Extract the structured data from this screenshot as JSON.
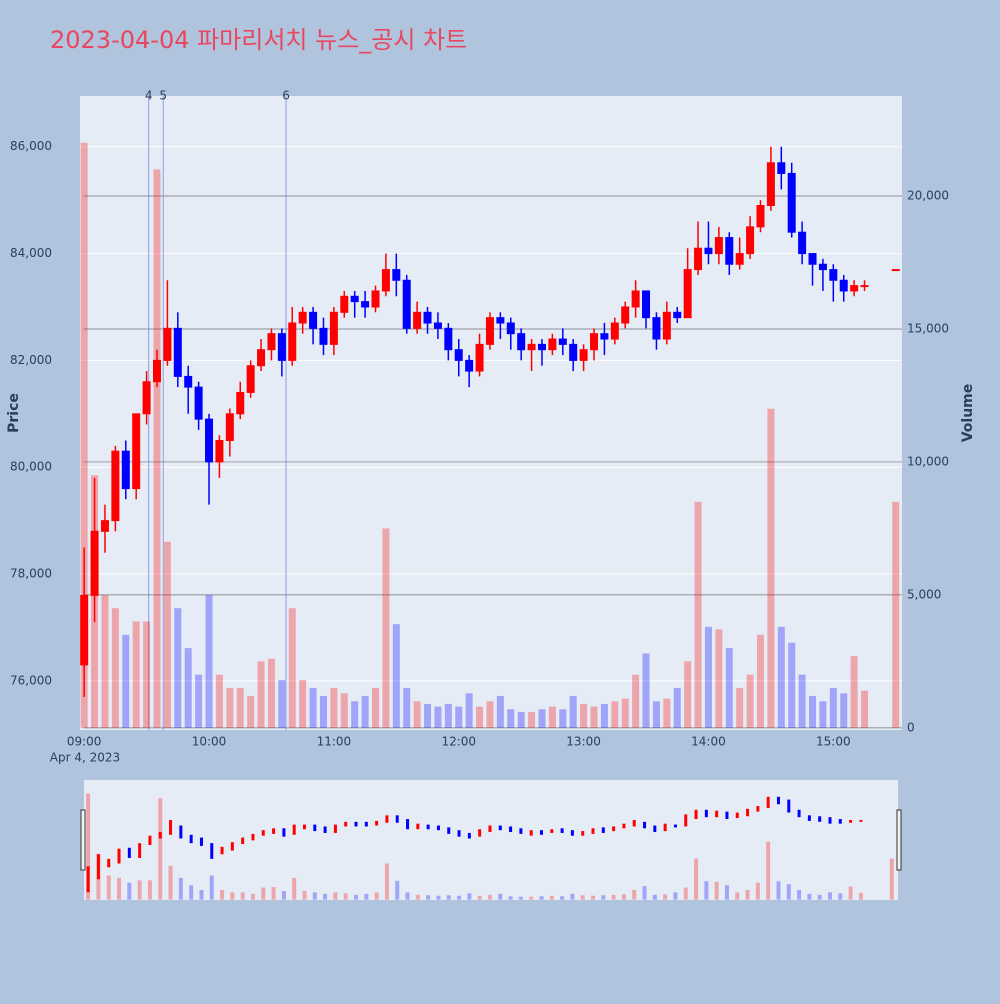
{
  "chart_data": {
    "type": "candlestick",
    "title": "2023-04-04 파마리서치 뉴스_공시 차트",
    "ylabel": "Price",
    "y2label": "Volume",
    "date_label": "Apr 4, 2023",
    "up_color": "#ff0000",
    "down_color": "#0000ff",
    "xlim": [
      "08:58",
      "15:33"
    ],
    "xticks": [
      "09:00",
      "10:00",
      "11:00",
      "12:00",
      "13:00",
      "14:00",
      "15:00"
    ],
    "ylim": [
      75080,
      86950
    ],
    "yticks": [
      {
        "value": 76000,
        "label": "76,000"
      },
      {
        "value": 78000,
        "label": "78,000"
      },
      {
        "value": 80000,
        "label": "80,000"
      },
      {
        "value": 82000,
        "label": "82,000"
      },
      {
        "value": 84000,
        "label": "84,000"
      },
      {
        "value": 86000,
        "label": "86,000"
      }
    ],
    "y2lim": [
      -80,
      23760
    ],
    "y2ticks": [
      0,
      {
        "value": 5000,
        "label": "5,000"
      },
      {
        "value": 10000,
        "label": "10,000"
      },
      {
        "value": 15000,
        "label": "15,000"
      },
      {
        "value": 20000,
        "label": "20,000"
      }
    ],
    "events": [
      {
        "x": "09:31",
        "label": "4"
      },
      {
        "x": "09:38",
        "label": "5"
      },
      {
        "x": "10:37",
        "label": "6"
      }
    ],
    "x": [
      "09:00",
      "09:05",
      "09:10",
      "09:15",
      "09:20",
      "09:25",
      "09:30",
      "09:35",
      "09:40",
      "09:45",
      "09:50",
      "09:55",
      "10:00",
      "10:05",
      "10:10",
      "10:15",
      "10:20",
      "10:25",
      "10:30",
      "10:35",
      "10:40",
      "10:45",
      "10:50",
      "10:55",
      "11:00",
      "11:05",
      "11:10",
      "11:15",
      "11:20",
      "11:25",
      "11:30",
      "11:35",
      "11:40",
      "11:45",
      "11:50",
      "11:55",
      "12:00",
      "12:05",
      "12:10",
      "12:15",
      "12:20",
      "12:25",
      "12:30",
      "12:35",
      "12:40",
      "12:45",
      "12:50",
      "12:55",
      "13:00",
      "13:05",
      "13:10",
      "13:15",
      "13:20",
      "13:25",
      "13:30",
      "13:35",
      "13:40",
      "13:45",
      "13:50",
      "13:55",
      "14:00",
      "14:05",
      "14:10",
      "14:15",
      "14:20",
      "14:25",
      "14:30",
      "14:35",
      "14:40",
      "14:45",
      "14:50",
      "14:55",
      "15:00",
      "15:05",
      "15:10",
      "15:15",
      "15:30"
    ],
    "open": [
      76300,
      77600,
      78800,
      79000,
      80300,
      79600,
      81000,
      81600,
      82000,
      82600,
      81700,
      81500,
      80900,
      80100,
      80500,
      81000,
      81400,
      81900,
      82200,
      82500,
      82000,
      82700,
      82900,
      82600,
      82300,
      82900,
      83200,
      83100,
      83000,
      83300,
      83700,
      83500,
      82600,
      82900,
      82700,
      82600,
      82200,
      82000,
      81800,
      82300,
      82800,
      82700,
      82500,
      82200,
      82300,
      82200,
      82400,
      82300,
      82000,
      82200,
      82500,
      82400,
      82700,
      83000,
      83300,
      82800,
      82400,
      82900,
      82800,
      83700,
      84100,
      84000,
      84300,
      83800,
      84000,
      84500,
      84900,
      85700,
      85500,
      84400,
      84000,
      83800,
      83700,
      83500,
      83300,
      83400,
      83700
    ],
    "high": [
      78500,
      79800,
      79300,
      80400,
      80500,
      81000,
      81800,
      82200,
      83500,
      82900,
      81900,
      81600,
      81000,
      80600,
      81100,
      81600,
      82000,
      82400,
      82600,
      82600,
      83000,
      83000,
      83000,
      82800,
      83000,
      83300,
      83300,
      83300,
      83400,
      84000,
      84000,
      83600,
      83100,
      83000,
      82900,
      82700,
      82400,
      82100,
      82500,
      82900,
      82900,
      82800,
      82600,
      82400,
      82400,
      82500,
      82600,
      82400,
      82300,
      82600,
      82700,
      82800,
      83100,
      83500,
      83300,
      82900,
      83100,
      83000,
      84100,
      84600,
      84600,
      84500,
      84400,
      84300,
      84700,
      85000,
      86000,
      86000,
      85700,
      84600,
      84000,
      83900,
      83800,
      83600,
      83500,
      83500,
      83700
    ],
    "low": [
      75700,
      77100,
      78400,
      78800,
      79400,
      79400,
      80800,
      81500,
      81900,
      81500,
      81000,
      80700,
      79300,
      79800,
      80200,
      80900,
      81300,
      81800,
      82000,
      81700,
      81900,
      82500,
      82300,
      82100,
      82100,
      82800,
      82800,
      82800,
      82900,
      83200,
      83200,
      82500,
      82500,
      82500,
      82400,
      82000,
      81700,
      81500,
      81700,
      82200,
      82400,
      82200,
      82000,
      81800,
      81900,
      82100,
      82100,
      81800,
      81800,
      82000,
      82100,
      82300,
      82600,
      82800,
      82600,
      82200,
      82300,
      82700,
      82800,
      83600,
      83800,
      83800,
      83600,
      83700,
      83900,
      84400,
      84800,
      85200,
      84300,
      83800,
      83400,
      83300,
      83100,
      83100,
      83200,
      83300,
      83700
    ],
    "close": [
      77600,
      78800,
      79000,
      80300,
      79600,
      81000,
      81600,
      82000,
      82600,
      81700,
      81500,
      80900,
      80100,
      80500,
      81000,
      81400,
      81900,
      82200,
      82500,
      82000,
      82700,
      82900,
      82600,
      82300,
      82900,
      83200,
      83100,
      83000,
      83300,
      83700,
      83500,
      82600,
      82900,
      82700,
      82600,
      82200,
      82000,
      81800,
      82300,
      82800,
      82700,
      82500,
      82200,
      82300,
      82200,
      82400,
      82300,
      82000,
      82200,
      82500,
      82400,
      82700,
      83000,
      83300,
      82800,
      82400,
      82900,
      82800,
      83700,
      84100,
      84000,
      84300,
      83800,
      84000,
      84500,
      84900,
      85700,
      85500,
      84400,
      84000,
      83800,
      83700,
      83500,
      83300,
      83400,
      83400,
      83700
    ],
    "volume": [
      22000,
      9500,
      5000,
      4500,
      3500,
      4000,
      4000,
      21000,
      7000,
      4500,
      3000,
      2000,
      5000,
      2000,
      1500,
      1500,
      1200,
      2500,
      2600,
      1800,
      4500,
      1800,
      1500,
      1200,
      1500,
      1300,
      1000,
      1200,
      1500,
      7500,
      3900,
      1500,
      1000,
      900,
      800,
      900,
      800,
      1300,
      800,
      1000,
      1200,
      700,
      600,
      600,
      700,
      800,
      700,
      1200,
      900,
      800,
      900,
      1000,
      1100,
      2000,
      2800,
      1000,
      1100,
      1500,
      2500,
      8500,
      3800,
      3700,
      3000,
      1500,
      2000,
      3500,
      12000,
      3800,
      3200,
      2000,
      1200,
      1000,
      1500,
      1300,
      2700,
      1400,
      8500
    ]
  }
}
